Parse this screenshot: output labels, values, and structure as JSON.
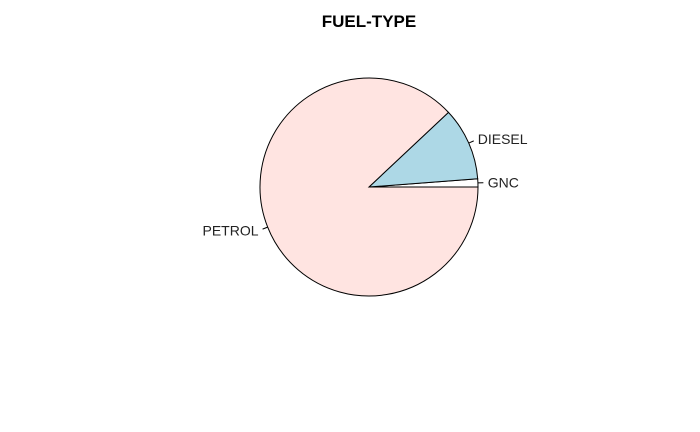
{
  "chart_data": {
    "type": "pie",
    "title": "FUEL-TYPE",
    "categories": [
      "GNC",
      "DIESEL",
      "PETROL"
    ],
    "values": [
      1.2,
      10.8,
      88.0
    ],
    "colors": [
      "#FFFFFF",
      "#ADD8E6",
      "#FFE4E1"
    ],
    "start_angle_deg": 0,
    "direction": "counterclockwise",
    "legend": "none"
  }
}
